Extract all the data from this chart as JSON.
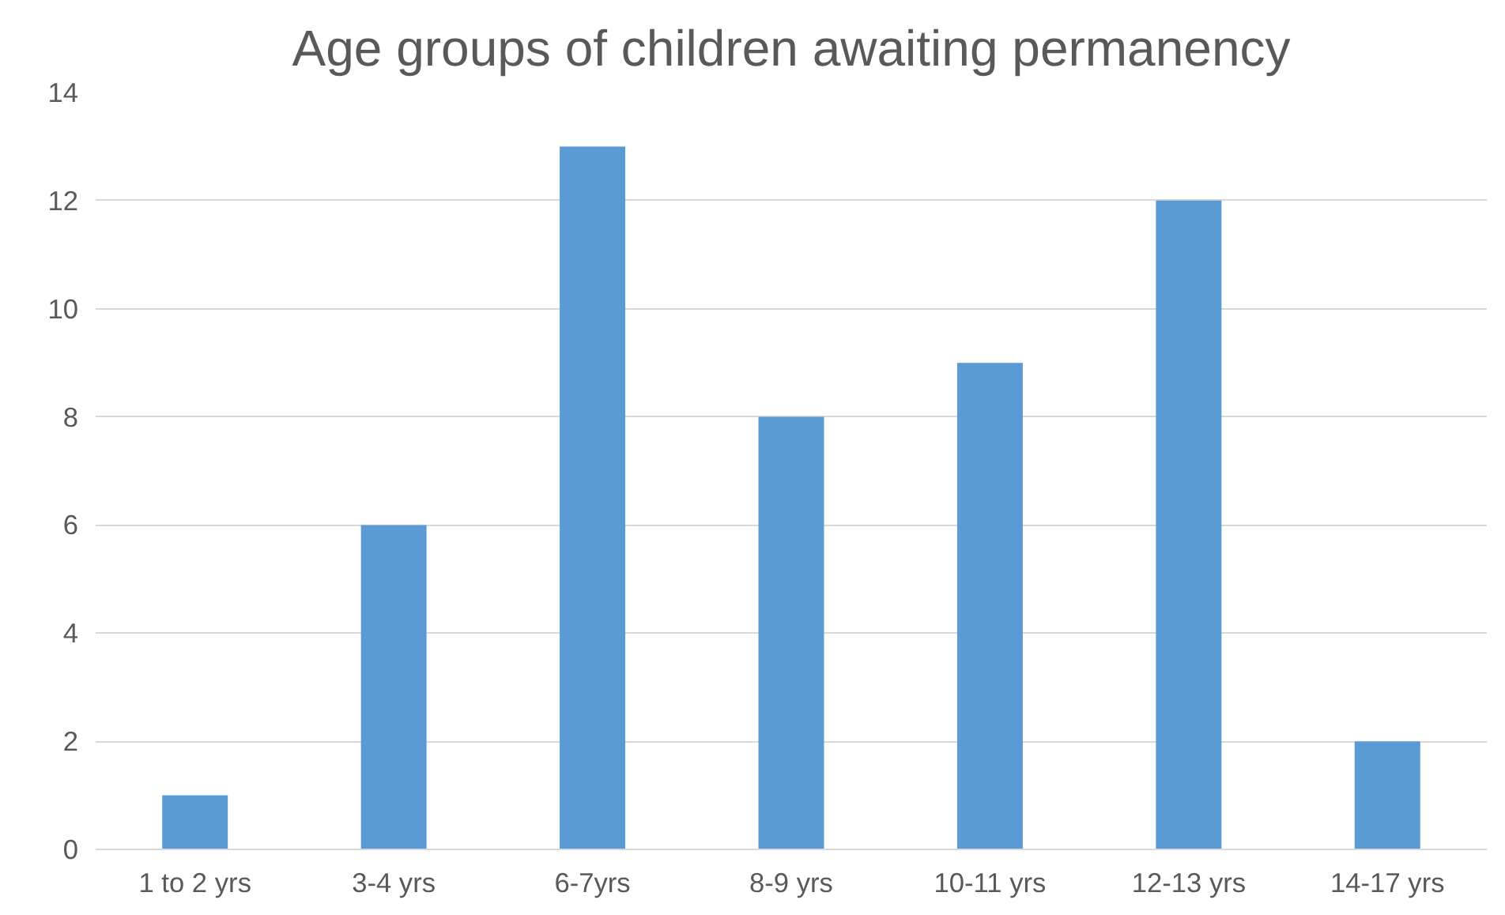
{
  "chart_data": {
    "type": "bar",
    "title": "Age groups of children awaiting permanency",
    "categories": [
      "1 to 2 yrs",
      "3-4 yrs",
      "6-7yrs",
      "8-9 yrs",
      "10-11 yrs",
      "12-13 yrs",
      "14-17 yrs"
    ],
    "values": [
      1,
      6,
      13,
      8,
      9,
      12,
      2
    ],
    "color": "#5b9bd5",
    "ylim": [
      0,
      14
    ],
    "yticks": [
      0,
      2,
      4,
      6,
      8,
      10,
      12,
      14
    ],
    "grid": "y"
  }
}
